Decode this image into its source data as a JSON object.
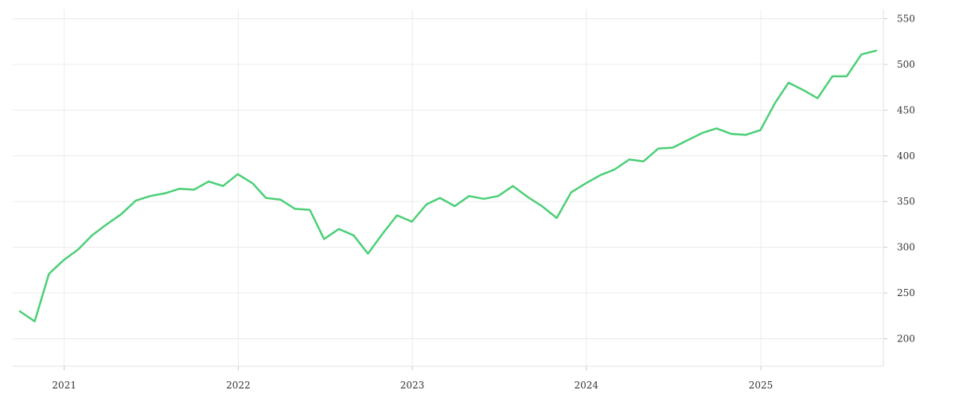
{
  "chart_data": {
    "type": "line",
    "title": "",
    "xlabel": "",
    "ylabel": "",
    "x_ticks": [
      "2021",
      "2022",
      "2023",
      "2024",
      "2025"
    ],
    "y_ticks": [
      200,
      250,
      300,
      350,
      400,
      450,
      500,
      550
    ],
    "xlim": [
      "2020-09-15",
      "2025-09-15"
    ],
    "ylim": [
      170,
      560
    ],
    "grid": true,
    "y_axis_side": "right",
    "series": [
      {
        "color": "#4ccf77",
        "x": [
          "2020-09-30",
          "2020-10-31",
          "2020-11-30",
          "2020-12-31",
          "2021-01-31",
          "2021-02-28",
          "2021-03-31",
          "2021-04-30",
          "2021-05-31",
          "2021-06-30",
          "2021-07-31",
          "2021-08-31",
          "2021-09-30",
          "2021-10-31",
          "2021-11-30",
          "2021-12-31",
          "2022-01-31",
          "2022-02-28",
          "2022-03-31",
          "2022-04-30",
          "2022-05-31",
          "2022-06-30",
          "2022-07-31",
          "2022-08-31",
          "2022-09-30",
          "2022-10-31",
          "2022-11-30",
          "2022-12-31",
          "2023-01-31",
          "2023-02-28",
          "2023-03-31",
          "2023-04-30",
          "2023-05-31",
          "2023-06-30",
          "2023-07-31",
          "2023-08-31",
          "2023-09-30",
          "2023-10-31",
          "2023-11-30",
          "2023-12-31",
          "2024-01-31",
          "2024-02-29",
          "2024-03-31",
          "2024-04-30",
          "2024-05-31",
          "2024-06-30",
          "2024-07-31",
          "2024-08-31",
          "2024-09-30",
          "2024-10-31",
          "2024-11-30",
          "2024-12-31",
          "2025-01-31",
          "2025-02-28",
          "2025-03-31",
          "2025-04-30",
          "2025-05-31",
          "2025-06-30",
          "2025-07-31",
          "2025-08-31"
        ],
        "y": [
          230,
          219,
          271,
          286,
          298,
          313,
          325,
          336,
          351,
          356,
          359,
          364,
          363,
          372,
          367,
          380,
          370,
          354,
          352,
          342,
          341,
          309,
          320,
          313,
          293,
          315,
          335,
          328,
          347,
          354,
          345,
          356,
          353,
          356,
          367,
          355,
          345,
          332,
          360,
          370,
          379,
          385,
          396,
          394,
          408,
          409,
          417,
          425,
          430,
          424,
          423,
          428,
          458,
          480,
          472,
          463,
          487,
          487,
          511,
          515
        ]
      }
    ]
  }
}
